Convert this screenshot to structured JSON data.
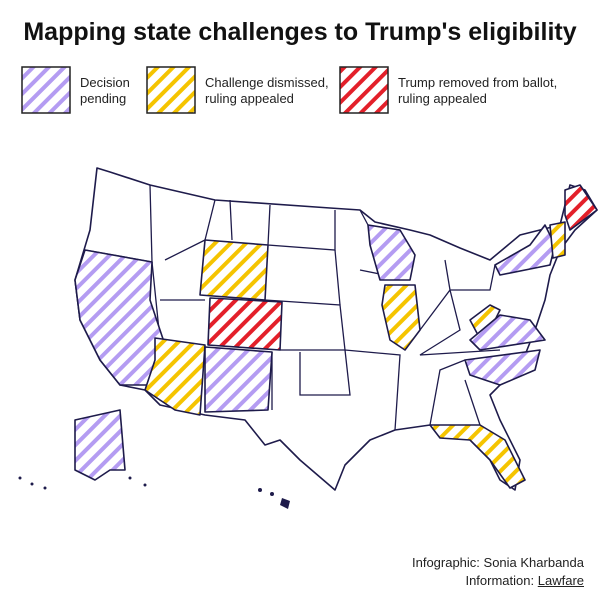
{
  "header": {
    "title": "Mapping state challenges to Trump's eligibility"
  },
  "legend": [
    {
      "lines": [
        "Decision",
        "pending"
      ],
      "color": "#b49cf2"
    },
    {
      "lines": [
        "Challenge dismissed,",
        "ruling appealed"
      ],
      "color": "#f5c400"
    },
    {
      "lines": [
        "Trump removed from ballot,",
        "ruling appealed"
      ],
      "color": "#e3202a"
    }
  ],
  "credits": {
    "line1": "Infographic: Sonia Kharbanda",
    "line2_label": "Information:",
    "line2_link": "Lawfare"
  }
}
